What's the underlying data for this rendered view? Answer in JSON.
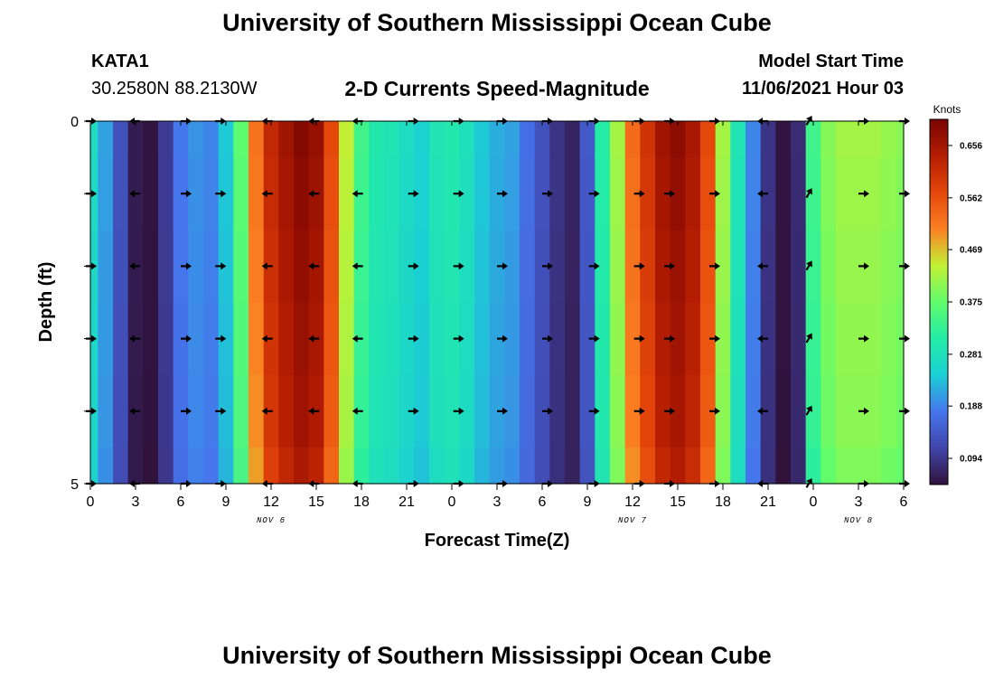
{
  "header": {
    "title": "University of Southern Mississippi Ocean Cube",
    "station": "KATA1",
    "coords": "30.2580N  88.2130W",
    "subtitle": "2-D Currents Speed-Magnitude",
    "model_start_label": "Model Start Time",
    "model_start_value": "11/06/2021 Hour 03"
  },
  "footer": {
    "title": "University of Southern Mississippi Ocean Cube"
  },
  "chart_data": {
    "type": "heatmap",
    "title": "2-D Currents Speed-Magnitude",
    "xlabel": "Forecast Time(Z)",
    "ylabel": "Depth (ft)",
    "x_range_hours": [
      0,
      54
    ],
    "ylim": [
      0,
      5
    ],
    "y_ticks": [
      "0",
      "5"
    ],
    "x_tick_labels": [
      "0",
      "3",
      "6",
      "9",
      "12",
      "15",
      "18",
      "21",
      "0",
      "3",
      "6",
      "9",
      "12",
      "15",
      "18",
      "21",
      "0",
      "3",
      "6"
    ],
    "date_labels": [
      {
        "text": "NOV 6",
        "hour": 12
      },
      {
        "text": "NOV 7",
        "hour": 36
      },
      {
        "text": "NOV 8",
        "hour": 51
      }
    ],
    "colorbar": {
      "label": "Knots",
      "min": 0.047,
      "max": 0.703,
      "ticks": [
        "0.656",
        "0.562",
        "0.469",
        "0.375",
        "0.281",
        "0.188",
        "0.094"
      ]
    },
    "speed_by_hour": [
      0.27,
      0.21,
      0.13,
      0.06,
      0.05,
      0.1,
      0.18,
      0.2,
      0.19,
      0.24,
      0.37,
      0.52,
      0.62,
      0.66,
      0.69,
      0.67,
      0.57,
      0.44,
      0.34,
      0.3,
      0.29,
      0.27,
      0.25,
      0.29,
      0.3,
      0.28,
      0.24,
      0.22,
      0.21,
      0.17,
      0.13,
      0.09,
      0.07,
      0.14,
      0.31,
      0.42,
      0.53,
      0.6,
      0.66,
      0.68,
      0.65,
      0.57,
      0.42,
      0.29,
      0.19,
      0.09,
      0.05,
      0.08,
      0.34,
      0.4,
      0.42,
      0.42,
      0.42,
      0.41,
      0.4
    ],
    "vector_hours": [
      0,
      3,
      6.3,
      8.6,
      11.8,
      14.9,
      17.8,
      21.4,
      24.4,
      27.3,
      30.3,
      33.4,
      36.4,
      38.4,
      41.4,
      44.7,
      47.7,
      51.3,
      54
    ],
    "vector_depths_ft": [
      0,
      1,
      2,
      3,
      4,
      5
    ],
    "vector_directions_deg": [
      0,
      180,
      0,
      0,
      180,
      180,
      180,
      0,
      0,
      0,
      0,
      0,
      0,
      0,
      0,
      180,
      300,
      0,
      0
    ]
  }
}
